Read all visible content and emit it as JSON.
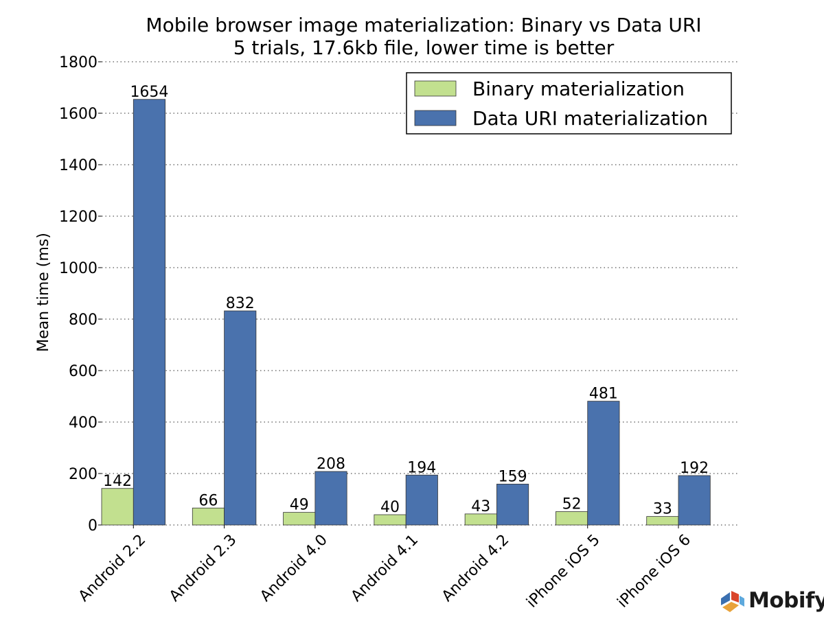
{
  "chart_data": {
    "type": "bar",
    "title": "Mobile browser image materialization: Binary vs Data URI",
    "subtitle": "5 trials, 17.6kb file, lower time is better",
    "xlabel": "",
    "ylabel": "Mean time (ms)",
    "ylim": [
      0,
      1800
    ],
    "yticks": [
      0,
      200,
      400,
      600,
      800,
      1000,
      1200,
      1400,
      1600,
      1800
    ],
    "grid": "horizontal dotted",
    "legend_position": "top-right",
    "categories": [
      "Android 2.2",
      "Android 2.3",
      "Android 4.0",
      "Android 4.1",
      "Android 4.2",
      "iPhone iOS 5",
      "iPhone iOS 6"
    ],
    "series": [
      {
        "name": "Binary materialization",
        "color": "#c2e08f",
        "values": [
          142,
          66,
          49,
          40,
          43,
          52,
          33
        ]
      },
      {
        "name": "Data URI materialization",
        "color": "#4a72ad",
        "values": [
          1654,
          832,
          208,
          194,
          159,
          481,
          192
        ]
      }
    ]
  },
  "branding": {
    "logo_text": "Mobify",
    "logo_colors": [
      "#3a6fb0",
      "#d9452b",
      "#e8a23a",
      "#5ea9dd"
    ]
  }
}
